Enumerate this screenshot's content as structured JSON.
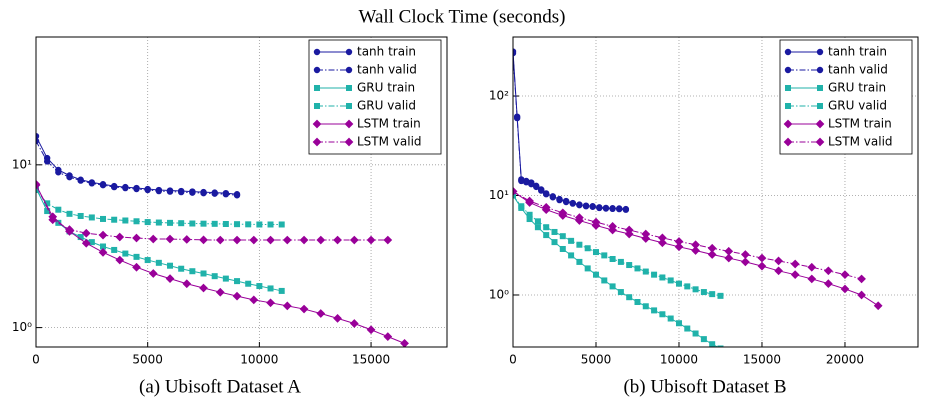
{
  "title": "Wall Clock Time (seconds)",
  "chart_data": [
    {
      "type": "line",
      "title": "(a) Ubisoft Dataset A",
      "log_y": true,
      "grid": true,
      "legend": "upper right",
      "xlim": [
        0,
        18400
      ],
      "ylim": [
        0.76,
        61
      ],
      "xticks": [
        0,
        5000,
        10000,
        15000
      ],
      "yticks": [
        {
          "value": 1,
          "label": "10⁰"
        },
        {
          "value": 10,
          "label": "10¹"
        }
      ],
      "series": [
        {
          "name": "tanh train",
          "color": "#1a1aa0",
          "marker": "o",
          "linestyle": "solid",
          "x": [
            0,
            500,
            1000,
            1500,
            2000,
            2500,
            3000,
            3500,
            4000,
            4500,
            5000,
            5500,
            6000,
            6500,
            7000,
            7500,
            8000,
            8500,
            9000
          ],
          "values": [
            15,
            11,
            9.3,
            8.6,
            8.1,
            7.8,
            7.6,
            7.4,
            7.3,
            7.2,
            7.1,
            7.0,
            6.95,
            6.9,
            6.85,
            6.8,
            6.75,
            6.7,
            6.6
          ]
        },
        {
          "name": "tanh valid",
          "color": "#1a1aa0",
          "marker": "o",
          "linestyle": "dashdot",
          "x": [
            0,
            500,
            1000,
            1500,
            2000,
            2500,
            3000,
            3500,
            4000,
            4500,
            5000,
            5500,
            6000,
            6500,
            7000,
            7500,
            8000,
            8500,
            9000
          ],
          "values": [
            14,
            10.5,
            9.0,
            8.4,
            8.0,
            7.7,
            7.5,
            7.3,
            7.2,
            7.1,
            7.0,
            6.9,
            6.85,
            6.8,
            6.75,
            6.7,
            6.65,
            6.6,
            6.5
          ]
        },
        {
          "name": "GRU train",
          "color": "#20b2aa",
          "marker": "s",
          "linestyle": "solid",
          "x": [
            0,
            500,
            1000,
            1500,
            2000,
            2500,
            3000,
            3500,
            4000,
            4500,
            5000,
            5500,
            6000,
            6500,
            7000,
            7500,
            8000,
            8500,
            9000,
            9500,
            10000,
            10500,
            11000
          ],
          "values": [
            7.2,
            5.2,
            4.4,
            3.9,
            3.6,
            3.35,
            3.15,
            3.0,
            2.85,
            2.72,
            2.6,
            2.5,
            2.4,
            2.3,
            2.22,
            2.15,
            2.07,
            2.0,
            1.93,
            1.86,
            1.8,
            1.74,
            1.68
          ]
        },
        {
          "name": "GRU valid",
          "color": "#20b2aa",
          "marker": "s",
          "linestyle": "dashdot",
          "x": [
            0,
            500,
            1000,
            1500,
            2000,
            2500,
            3000,
            3500,
            4000,
            4500,
            5000,
            5500,
            6000,
            6500,
            7000,
            7500,
            8000,
            8500,
            9000,
            9500,
            10000,
            10500,
            11000
          ],
          "values": [
            7.0,
            5.8,
            5.3,
            5.0,
            4.85,
            4.75,
            4.65,
            4.6,
            4.55,
            4.5,
            4.45,
            4.42,
            4.4,
            4.38,
            4.36,
            4.35,
            4.34,
            4.33,
            4.32,
            4.31,
            4.3,
            4.3,
            4.3
          ]
        },
        {
          "name": "LSTM train",
          "color": "#990099",
          "marker": "D",
          "linestyle": "solid",
          "x": [
            0,
            750,
            1500,
            2250,
            3000,
            3750,
            4500,
            5250,
            6000,
            6750,
            7500,
            8250,
            9000,
            9750,
            10500,
            11250,
            12000,
            12750,
            13500,
            14250,
            15000,
            15750,
            16500
          ],
          "values": [
            7.5,
            4.8,
            3.9,
            3.3,
            2.9,
            2.6,
            2.35,
            2.15,
            2.0,
            1.86,
            1.75,
            1.65,
            1.56,
            1.48,
            1.42,
            1.36,
            1.3,
            1.22,
            1.14,
            1.06,
            0.97,
            0.88,
            0.8
          ]
        },
        {
          "name": "LSTM valid",
          "color": "#990099",
          "marker": "D",
          "linestyle": "dashdot",
          "x": [
            0,
            750,
            1500,
            2250,
            3000,
            3750,
            4500,
            5250,
            6000,
            6750,
            7500,
            8250,
            9000,
            9750,
            10500,
            11250,
            12000,
            12750,
            13500,
            14250,
            15000,
            15750
          ],
          "values": [
            7.6,
            4.6,
            4.0,
            3.8,
            3.7,
            3.6,
            3.55,
            3.5,
            3.5,
            3.48,
            3.46,
            3.45,
            3.45,
            3.45,
            3.45,
            3.45,
            3.45,
            3.45,
            3.45,
            3.45,
            3.45,
            3.45
          ]
        }
      ]
    },
    {
      "type": "line",
      "title": "(b) Ubisoft Dataset B",
      "log_y": true,
      "grid": true,
      "legend": "upper right",
      "xlim": [
        0,
        24400
      ],
      "ylim": [
        0.3,
        392
      ],
      "xticks": [
        0,
        5000,
        10000,
        15000,
        20000
      ],
      "yticks": [
        {
          "value": 1,
          "label": "10⁰"
        },
        {
          "value": 10,
          "label": "10¹"
        },
        {
          "value": 100,
          "label": "10²"
        }
      ],
      "series": [
        {
          "name": "tanh train",
          "color": "#1a1aa0",
          "marker": "o",
          "linestyle": "solid",
          "x": [
            0,
            250,
            500,
            800,
            1100,
            1400,
            1700,
            2000,
            2400,
            2800,
            3200,
            3600,
            4000,
            4400,
            4800,
            5200,
            5600,
            6000,
            6400,
            6800
          ],
          "values": [
            280,
            62,
            14.5,
            14,
            13.5,
            12.5,
            11.5,
            10.5,
            9.8,
            9.2,
            8.8,
            8.4,
            8.1,
            7.9,
            7.8,
            7.6,
            7.5,
            7.45,
            7.4,
            7.3
          ]
        },
        {
          "name": "tanh valid",
          "color": "#1a1aa0",
          "marker": "o",
          "linestyle": "dashdot",
          "x": [
            0,
            250,
            500,
            800,
            1100,
            1400,
            1700,
            2000,
            2400,
            2800,
            3200,
            3600,
            4000,
            4400,
            4800,
            5200,
            5600,
            6000,
            6400,
            6800
          ],
          "values": [
            270,
            60,
            14,
            13.6,
            13,
            12.2,
            11.2,
            10.3,
            9.6,
            9.0,
            8.6,
            8.3,
            8.0,
            7.8,
            7.7,
            7.5,
            7.4,
            7.35,
            7.3,
            7.2
          ]
        },
        {
          "name": "GRU train",
          "color": "#20b2aa",
          "marker": "s",
          "linestyle": "solid",
          "x": [
            0,
            500,
            1000,
            1500,
            2000,
            2500,
            3000,
            3500,
            4000,
            4500,
            5000,
            5500,
            6000,
            6500,
            7000,
            7500,
            8000,
            8500,
            9000,
            9500,
            10000,
            10500,
            11000,
            11500,
            12000,
            12500
          ],
          "values": [
            10,
            7.5,
            5.8,
            4.8,
            4.0,
            3.4,
            2.9,
            2.5,
            2.15,
            1.85,
            1.6,
            1.4,
            1.22,
            1.07,
            0.95,
            0.85,
            0.77,
            0.7,
            0.64,
            0.58,
            0.52,
            0.46,
            0.41,
            0.36,
            0.32,
            0.29
          ]
        },
        {
          "name": "GRU valid",
          "color": "#20b2aa",
          "marker": "s",
          "linestyle": "dashdot",
          "x": [
            0,
            500,
            1000,
            1500,
            2000,
            2500,
            3000,
            3500,
            4000,
            4500,
            5000,
            5500,
            6000,
            6500,
            7000,
            7500,
            8000,
            8500,
            9000,
            9500,
            10000,
            10500,
            11000,
            11500,
            12000,
            12500
          ],
          "values": [
            10,
            7.8,
            6.4,
            5.5,
            4.8,
            4.3,
            3.9,
            3.5,
            3.2,
            2.95,
            2.7,
            2.5,
            2.3,
            2.15,
            2.0,
            1.85,
            1.72,
            1.6,
            1.5,
            1.4,
            1.3,
            1.22,
            1.14,
            1.07,
            1.02,
            0.98
          ]
        },
        {
          "name": "LSTM train",
          "color": "#990099",
          "marker": "D",
          "linestyle": "solid",
          "x": [
            0,
            1000,
            2000,
            3000,
            4000,
            5000,
            6000,
            7000,
            8000,
            9000,
            10000,
            11000,
            12000,
            13000,
            14000,
            15000,
            16000,
            17000,
            18000,
            19000,
            20000,
            21000,
            22000
          ],
          "values": [
            11,
            8.5,
            7.2,
            6.3,
            5.6,
            5.0,
            4.5,
            4.1,
            3.7,
            3.35,
            3.05,
            2.8,
            2.55,
            2.35,
            2.15,
            1.95,
            1.75,
            1.6,
            1.45,
            1.3,
            1.15,
            1.0,
            0.78
          ]
        },
        {
          "name": "LSTM valid",
          "color": "#990099",
          "marker": "D",
          "linestyle": "dashdot",
          "x": [
            0,
            1000,
            2000,
            3000,
            4000,
            5000,
            6000,
            7000,
            8000,
            9000,
            10000,
            11000,
            12000,
            13000,
            14000,
            15000,
            16000,
            17000,
            18000,
            19000,
            20000,
            21000
          ],
          "values": [
            11,
            8.8,
            7.6,
            6.7,
            6.0,
            5.4,
            4.9,
            4.5,
            4.1,
            3.75,
            3.45,
            3.2,
            2.95,
            2.75,
            2.55,
            2.35,
            2.2,
            2.05,
            1.9,
            1.75,
            1.6,
            1.45
          ]
        }
      ]
    }
  ]
}
